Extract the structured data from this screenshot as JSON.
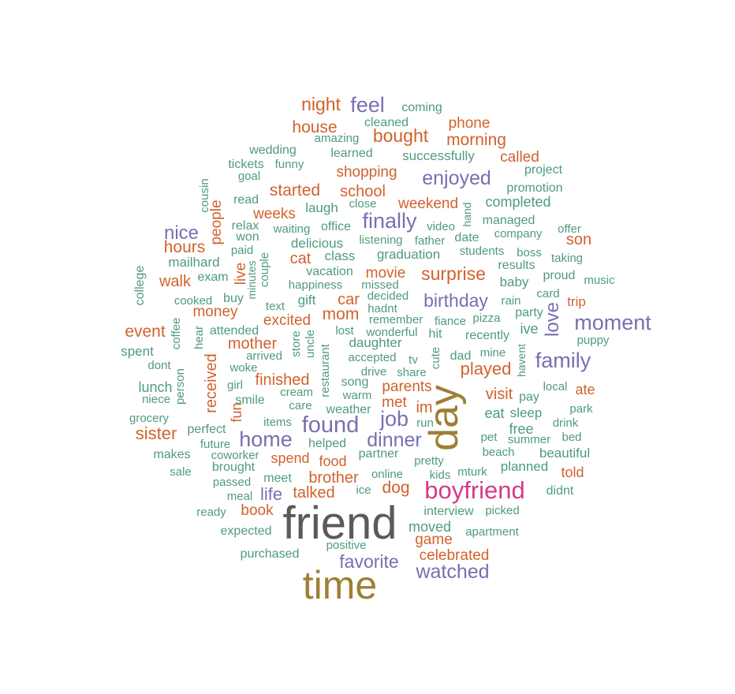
{
  "palette": {
    "teal": "#4f9a7e",
    "orange": "#d2622c",
    "purple": "#7670b2",
    "pink": "#d6398a",
    "olive": "#9e7f34",
    "gray": "#5a5a5a"
  },
  "words": [
    {
      "text": "friend",
      "color": "gray"
    },
    {
      "text": "time",
      "color": "olive"
    },
    {
      "text": "day",
      "color": "olive"
    },
    {
      "text": "boyfriend",
      "color": "pink"
    },
    {
      "text": "moment",
      "color": "purple"
    },
    {
      "text": "family",
      "color": "purple"
    },
    {
      "text": "watched",
      "color": "purple"
    },
    {
      "text": "favorite",
      "color": "purple"
    },
    {
      "text": "found",
      "color": "purple"
    },
    {
      "text": "home",
      "color": "purple"
    },
    {
      "text": "dinner",
      "color": "purple"
    },
    {
      "text": "job",
      "color": "purple"
    },
    {
      "text": "birthday",
      "color": "purple"
    },
    {
      "text": "finally",
      "color": "purple"
    },
    {
      "text": "enjoyed",
      "color": "purple"
    },
    {
      "text": "feel",
      "color": "purple"
    },
    {
      "text": "nice",
      "color": "purple"
    },
    {
      "text": "love",
      "color": "purple"
    },
    {
      "text": "life",
      "color": "purple"
    },
    {
      "text": "night",
      "color": "orange"
    },
    {
      "text": "house",
      "color": "orange"
    },
    {
      "text": "bought",
      "color": "orange"
    },
    {
      "text": "morning",
      "color": "orange"
    },
    {
      "text": "phone",
      "color": "orange"
    },
    {
      "text": "called",
      "color": "orange"
    },
    {
      "text": "shopping",
      "color": "orange"
    },
    {
      "text": "started",
      "color": "orange"
    },
    {
      "text": "school",
      "color": "orange"
    },
    {
      "text": "weekend",
      "color": "orange"
    },
    {
      "text": "weeks",
      "color": "orange"
    },
    {
      "text": "people",
      "color": "orange"
    },
    {
      "text": "hours",
      "color": "orange"
    },
    {
      "text": "cat",
      "color": "orange"
    },
    {
      "text": "son",
      "color": "orange"
    },
    {
      "text": "movie",
      "color": "orange"
    },
    {
      "text": "surprise",
      "color": "orange"
    },
    {
      "text": "walk",
      "color": "orange"
    },
    {
      "text": "live",
      "color": "orange"
    },
    {
      "text": "money",
      "color": "orange"
    },
    {
      "text": "mom",
      "color": "orange"
    },
    {
      "text": "car",
      "color": "orange"
    },
    {
      "text": "excited",
      "color": "orange"
    },
    {
      "text": "trip",
      "color": "orange"
    },
    {
      "text": "event",
      "color": "orange"
    },
    {
      "text": "mother",
      "color": "orange"
    },
    {
      "text": "received",
      "color": "orange"
    },
    {
      "text": "played",
      "color": "orange"
    },
    {
      "text": "finished",
      "color": "orange"
    },
    {
      "text": "parents",
      "color": "orange"
    },
    {
      "text": "visit",
      "color": "orange"
    },
    {
      "text": "ate",
      "color": "orange"
    },
    {
      "text": "fun",
      "color": "orange"
    },
    {
      "text": "met",
      "color": "orange"
    },
    {
      "text": "im",
      "color": "orange"
    },
    {
      "text": "sister",
      "color": "orange"
    },
    {
      "text": "spend",
      "color": "orange"
    },
    {
      "text": "food",
      "color": "orange"
    },
    {
      "text": "brother",
      "color": "orange"
    },
    {
      "text": "dog",
      "color": "orange"
    },
    {
      "text": "told",
      "color": "orange"
    },
    {
      "text": "talked",
      "color": "orange"
    },
    {
      "text": "book",
      "color": "orange"
    },
    {
      "text": "game",
      "color": "orange"
    },
    {
      "text": "celebrated",
      "color": "orange"
    },
    {
      "text": "coming",
      "color": "teal"
    },
    {
      "text": "cleaned",
      "color": "teal"
    },
    {
      "text": "amazing",
      "color": "teal"
    },
    {
      "text": "wedding",
      "color": "teal"
    },
    {
      "text": "learned",
      "color": "teal"
    },
    {
      "text": "successfully",
      "color": "teal"
    },
    {
      "text": "tickets",
      "color": "teal"
    },
    {
      "text": "funny",
      "color": "teal"
    },
    {
      "text": "project",
      "color": "teal"
    },
    {
      "text": "goal",
      "color": "teal"
    },
    {
      "text": "cousin",
      "color": "teal"
    },
    {
      "text": "promotion",
      "color": "teal"
    },
    {
      "text": "read",
      "color": "teal"
    },
    {
      "text": "close",
      "color": "teal"
    },
    {
      "text": "laugh",
      "color": "teal"
    },
    {
      "text": "completed",
      "color": "teal"
    },
    {
      "text": "hand",
      "color": "teal"
    },
    {
      "text": "managed",
      "color": "teal"
    },
    {
      "text": "relax",
      "color": "teal"
    },
    {
      "text": "won",
      "color": "teal"
    },
    {
      "text": "waiting",
      "color": "teal"
    },
    {
      "text": "office",
      "color": "teal"
    },
    {
      "text": "video",
      "color": "teal"
    },
    {
      "text": "offer",
      "color": "teal"
    },
    {
      "text": "paid",
      "color": "teal"
    },
    {
      "text": "company",
      "color": "teal"
    },
    {
      "text": "delicious",
      "color": "teal"
    },
    {
      "text": "listening",
      "color": "teal"
    },
    {
      "text": "father",
      "color": "teal"
    },
    {
      "text": "date",
      "color": "teal"
    },
    {
      "text": "boss",
      "color": "teal"
    },
    {
      "text": "mailhard",
      "color": "teal"
    },
    {
      "text": "couple",
      "color": "teal"
    },
    {
      "text": "class",
      "color": "teal"
    },
    {
      "text": "students",
      "color": "teal"
    },
    {
      "text": "taking",
      "color": "teal"
    },
    {
      "text": "graduation",
      "color": "teal"
    },
    {
      "text": "college",
      "color": "teal"
    },
    {
      "text": "exam",
      "color": "teal"
    },
    {
      "text": "vacation",
      "color": "teal"
    },
    {
      "text": "results",
      "color": "teal"
    },
    {
      "text": "proud",
      "color": "teal"
    },
    {
      "text": "music",
      "color": "teal"
    },
    {
      "text": "happiness",
      "color": "teal"
    },
    {
      "text": "missed",
      "color": "teal"
    },
    {
      "text": "baby",
      "color": "teal"
    },
    {
      "text": "minutes",
      "color": "teal"
    },
    {
      "text": "card",
      "color": "teal"
    },
    {
      "text": "cooked",
      "color": "teal"
    },
    {
      "text": "buy",
      "color": "teal"
    },
    {
      "text": "decided",
      "color": "teal"
    },
    {
      "text": "gift",
      "color": "teal"
    },
    {
      "text": "rain",
      "color": "teal"
    },
    {
      "text": "text",
      "color": "teal"
    },
    {
      "text": "hadnt",
      "color": "teal"
    },
    {
      "text": "party",
      "color": "teal"
    },
    {
      "text": "remember",
      "color": "teal"
    },
    {
      "text": "fiance",
      "color": "teal"
    },
    {
      "text": "pizza",
      "color": "teal"
    },
    {
      "text": "coffee",
      "color": "teal"
    },
    {
      "text": "attended",
      "color": "teal"
    },
    {
      "text": "lost",
      "color": "teal"
    },
    {
      "text": "wonderful",
      "color": "teal"
    },
    {
      "text": "hit",
      "color": "teal"
    },
    {
      "text": "recently",
      "color": "teal"
    },
    {
      "text": "ive",
      "color": "teal"
    },
    {
      "text": "spent",
      "color": "teal"
    },
    {
      "text": "hear",
      "color": "teal"
    },
    {
      "text": "store",
      "color": "teal"
    },
    {
      "text": "uncle",
      "color": "teal"
    },
    {
      "text": "daughter",
      "color": "teal"
    },
    {
      "text": "puppy",
      "color": "teal"
    },
    {
      "text": "mine",
      "color": "teal"
    },
    {
      "text": "dont",
      "color": "teal"
    },
    {
      "text": "arrived",
      "color": "teal"
    },
    {
      "text": "accepted",
      "color": "teal"
    },
    {
      "text": "tv",
      "color": "teal"
    },
    {
      "text": "cute",
      "color": "teal"
    },
    {
      "text": "dad",
      "color": "teal"
    },
    {
      "text": "havent",
      "color": "teal"
    },
    {
      "text": "woke",
      "color": "teal"
    },
    {
      "text": "restaurant",
      "color": "teal"
    },
    {
      "text": "drive",
      "color": "teal"
    },
    {
      "text": "share",
      "color": "teal"
    },
    {
      "text": "person",
      "color": "teal"
    },
    {
      "text": "girl",
      "color": "teal"
    },
    {
      "text": "song",
      "color": "teal"
    },
    {
      "text": "lunch",
      "color": "teal"
    },
    {
      "text": "cream",
      "color": "teal"
    },
    {
      "text": "warm",
      "color": "teal"
    },
    {
      "text": "local",
      "color": "teal"
    },
    {
      "text": "pay",
      "color": "teal"
    },
    {
      "text": "niece",
      "color": "teal"
    },
    {
      "text": "smile",
      "color": "teal"
    },
    {
      "text": "care",
      "color": "teal"
    },
    {
      "text": "weather",
      "color": "teal"
    },
    {
      "text": "park",
      "color": "teal"
    },
    {
      "text": "eat",
      "color": "teal"
    },
    {
      "text": "sleep",
      "color": "teal"
    },
    {
      "text": "grocery",
      "color": "teal"
    },
    {
      "text": "items",
      "color": "teal"
    },
    {
      "text": "run",
      "color": "teal"
    },
    {
      "text": "drink",
      "color": "teal"
    },
    {
      "text": "perfect",
      "color": "teal"
    },
    {
      "text": "free",
      "color": "teal"
    },
    {
      "text": "future",
      "color": "teal"
    },
    {
      "text": "helped",
      "color": "teal"
    },
    {
      "text": "pet",
      "color": "teal"
    },
    {
      "text": "summer",
      "color": "teal"
    },
    {
      "text": "bed",
      "color": "teal"
    },
    {
      "text": "makes",
      "color": "teal"
    },
    {
      "text": "coworker",
      "color": "teal"
    },
    {
      "text": "partner",
      "color": "teal"
    },
    {
      "text": "beach",
      "color": "teal"
    },
    {
      "text": "beautiful",
      "color": "teal"
    },
    {
      "text": "pretty",
      "color": "teal"
    },
    {
      "text": "brought",
      "color": "teal"
    },
    {
      "text": "planned",
      "color": "teal"
    },
    {
      "text": "sale",
      "color": "teal"
    },
    {
      "text": "online",
      "color": "teal"
    },
    {
      "text": "kids",
      "color": "teal"
    },
    {
      "text": "mturk",
      "color": "teal"
    },
    {
      "text": "passed",
      "color": "teal"
    },
    {
      "text": "meet",
      "color": "teal"
    },
    {
      "text": "ice",
      "color": "teal"
    },
    {
      "text": "didnt",
      "color": "teal"
    },
    {
      "text": "meal",
      "color": "teal"
    },
    {
      "text": "ready",
      "color": "teal"
    },
    {
      "text": "interview",
      "color": "teal"
    },
    {
      "text": "picked",
      "color": "teal"
    },
    {
      "text": "moved",
      "color": "teal"
    },
    {
      "text": "expected",
      "color": "teal"
    },
    {
      "text": "apartment",
      "color": "teal"
    },
    {
      "text": "positive",
      "color": "teal"
    },
    {
      "text": "purchased",
      "color": "teal"
    }
  ]
}
